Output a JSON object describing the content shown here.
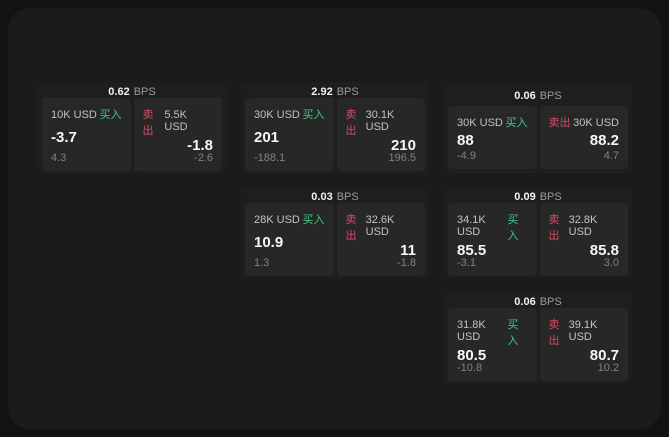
{
  "colors": {
    "page_bg": "#121213",
    "panel_bg": "#1b1b1c",
    "card_bg": "#1e1e1f",
    "tile_bg": "#272728",
    "buy_green": "#3ec981",
    "sell_red": "#d84a62",
    "value_white": "#f7f7f7",
    "muted_gray": "#828282"
  },
  "labels": {
    "bps_unit": "BPS",
    "buy": "买入",
    "sell": "卖出"
  },
  "cards": [
    {
      "bps": "0.62",
      "buy": {
        "amount": "10K USD",
        "value": "-3.7",
        "sub": "4.3"
      },
      "sell": {
        "amount": "5.5K USD",
        "value": "-1.8",
        "sub": "-2.6"
      }
    },
    {
      "bps": "2.92",
      "buy": {
        "amount": "30K USD",
        "value": "201",
        "sub": "-188.1"
      },
      "sell": {
        "amount": "30.1K USD",
        "value": "210",
        "sub": "196.5"
      }
    },
    {
      "bps": "0.06",
      "buy": {
        "amount": "30K USD",
        "value": "88",
        "sub": "-4.9"
      },
      "sell": {
        "amount": "30K USD",
        "value": "88.2",
        "sub": "4.7"
      }
    },
    {
      "bps": "0.03",
      "buy": {
        "amount": "28K USD",
        "value": "10.9",
        "sub": "1.3"
      },
      "sell": {
        "amount": "32.6K USD",
        "value": "11",
        "sub": "-1.8"
      }
    },
    {
      "bps": "0.09",
      "buy": {
        "amount": "34.1K USD",
        "value": "85.5",
        "sub": "-3.1"
      },
      "sell": {
        "amount": "32.8K USD",
        "value": "85.8",
        "sub": "3.0"
      }
    },
    {
      "bps": "0.06",
      "buy": {
        "amount": "31.8K USD",
        "value": "80.5",
        "sub": "-10.8"
      },
      "sell": {
        "amount": "39.1K USD",
        "value": "80.7",
        "sub": "10.2"
      }
    }
  ]
}
